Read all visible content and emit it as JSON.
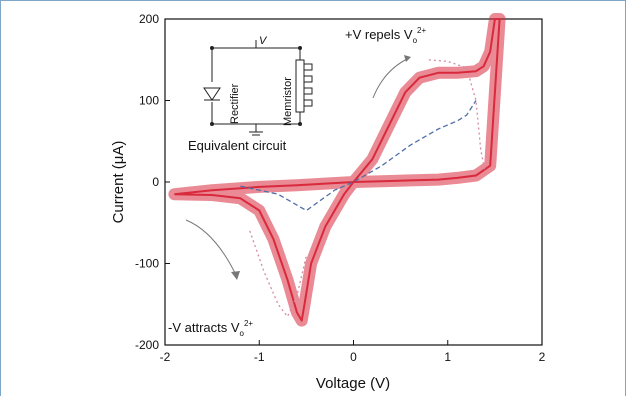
{
  "chart_data": {
    "type": "line",
    "title": "",
    "xlabel": "Voltage (V)",
    "ylabel": "Current (μA)",
    "xlim": [
      -2,
      2
    ],
    "ylim": [
      -200,
      200
    ],
    "xticks": [
      "-2",
      "-1",
      "0",
      "1",
      "2"
    ],
    "yticks": [
      "-200",
      "-100",
      "0",
      "100",
      "200"
    ],
    "grid": false,
    "annotations": {
      "top": "+V repels V",
      "top_sub": "o",
      "top_sup": "2+",
      "bottom": "-V attracts V",
      "bottom_sub": "o",
      "bottom_sup": "2+"
    },
    "inset": {
      "title": "Equivalent circuit",
      "voltage_label": "V",
      "rectifier_label": "Rectifier",
      "memristor_label": "Memristor"
    },
    "series": [
      {
        "style": "solid-band",
        "color": "#d9293c",
        "x": [
          -1.9,
          -1.5,
          -1.2,
          -1.0,
          -0.85,
          -0.7,
          -0.6,
          -0.55,
          -0.52,
          -0.45,
          -0.3,
          -0.1,
          0.0,
          0.2,
          0.4,
          0.55,
          0.7,
          0.9,
          1.1,
          1.3,
          1.38,
          1.45,
          1.5,
          1.55,
          1.45,
          1.3,
          1.1,
          0.9,
          0.6,
          0.3,
          0.0,
          -0.3,
          -0.6,
          -1.0,
          -1.5,
          -1.9
        ],
        "y": [
          -15,
          -16,
          -20,
          -35,
          -70,
          -120,
          -160,
          -170,
          -150,
          -100,
          -55,
          -15,
          0,
          28,
          75,
          110,
          128,
          134,
          134,
          136,
          142,
          160,
          200,
          200,
          20,
          8,
          5,
          3,
          2,
          1,
          0,
          -2,
          -4,
          -6,
          -10,
          -15
        ],
        "band_width": 12
      },
      {
        "style": "dashed",
        "color": "#4f6fa8",
        "x": [
          -1.2,
          -0.8,
          -0.5,
          -0.2,
          0.0,
          0.3,
          0.6,
          0.9,
          1.1,
          1.2,
          1.3
        ],
        "y": [
          -5,
          -15,
          -35,
          -10,
          0,
          20,
          45,
          65,
          75,
          82,
          100
        ]
      },
      {
        "style": "dotted",
        "color": "#d48aa2",
        "x": [
          -1.1,
          -0.95,
          -0.8,
          -0.7,
          -0.6,
          -0.5
        ],
        "y": [
          -60,
          -110,
          -150,
          -165,
          -140,
          -90
        ]
      },
      {
        "style": "dotted",
        "color": "#d48aa2",
        "x": [
          0.8,
          1.0,
          1.2,
          1.3,
          1.35,
          1.4
        ],
        "y": [
          150,
          148,
          140,
          100,
          40,
          10
        ]
      }
    ]
  }
}
